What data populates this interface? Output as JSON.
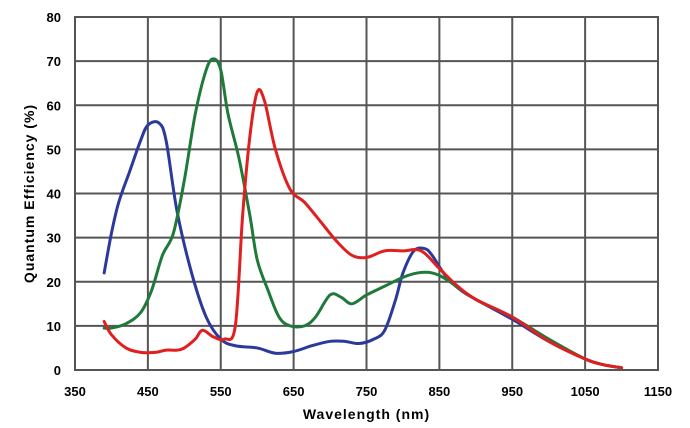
{
  "chart_data": {
    "type": "line",
    "title": "",
    "xlabel": "Wavelength (nm)",
    "ylabel": "Quantum Efficiency (%)",
    "xlim": [
      350,
      1150
    ],
    "ylim": [
      0,
      80
    ],
    "xticks": [
      350,
      450,
      550,
      650,
      750,
      850,
      950,
      1050,
      1150
    ],
    "yticks": [
      0,
      10,
      20,
      30,
      40,
      50,
      60,
      70,
      80
    ],
    "grid": true,
    "legend": "none",
    "series": [
      {
        "color": "#2b3a9a",
        "points": [
          [
            390,
            22
          ],
          [
            400,
            31
          ],
          [
            410,
            38
          ],
          [
            425,
            45
          ],
          [
            440,
            52
          ],
          [
            450,
            55.5
          ],
          [
            465,
            56
          ],
          [
            475,
            52
          ],
          [
            490,
            36
          ],
          [
            510,
            22
          ],
          [
            530,
            12
          ],
          [
            550,
            7
          ],
          [
            570,
            5.5
          ],
          [
            600,
            5
          ],
          [
            625,
            3.8
          ],
          [
            650,
            4.2
          ],
          [
            675,
            5.5
          ],
          [
            700,
            6.5
          ],
          [
            720,
            6.5
          ],
          [
            740,
            6
          ],
          [
            760,
            7
          ],
          [
            775,
            9
          ],
          [
            790,
            16
          ],
          [
            800,
            22
          ],
          [
            815,
            27
          ],
          [
            830,
            27.5
          ],
          [
            840,
            26
          ],
          [
            860,
            21
          ],
          [
            880,
            18
          ],
          [
            900,
            16
          ],
          [
            950,
            11.5
          ],
          [
            1000,
            6.5
          ],
          [
            1050,
            2.5
          ],
          [
            1075,
            1.2
          ],
          [
            1100,
            0.5
          ]
        ]
      },
      {
        "color": "#1f7a3a",
        "points": [
          [
            390,
            9.5
          ],
          [
            400,
            9.5
          ],
          [
            420,
            10.5
          ],
          [
            440,
            13
          ],
          [
            455,
            18
          ],
          [
            470,
            26
          ],
          [
            485,
            31
          ],
          [
            500,
            43
          ],
          [
            515,
            58
          ],
          [
            530,
            68
          ],
          [
            540,
            70.5
          ],
          [
            550,
            68
          ],
          [
            560,
            58
          ],
          [
            575,
            48
          ],
          [
            590,
            35
          ],
          [
            600,
            25
          ],
          [
            615,
            18
          ],
          [
            630,
            12
          ],
          [
            645,
            10
          ],
          [
            665,
            10
          ],
          [
            680,
            12
          ],
          [
            700,
            17
          ],
          [
            715,
            16.5
          ],
          [
            730,
            15
          ],
          [
            750,
            17
          ],
          [
            775,
            19
          ],
          [
            800,
            21
          ],
          [
            820,
            22
          ],
          [
            840,
            22
          ],
          [
            860,
            20.5
          ],
          [
            900,
            16
          ],
          [
            950,
            12
          ],
          [
            1000,
            7
          ],
          [
            1050,
            2.5
          ],
          [
            1075,
            1.2
          ],
          [
            1100,
            0.5
          ]
        ]
      },
      {
        "color": "#e02020",
        "points": [
          [
            390,
            11
          ],
          [
            400,
            8
          ],
          [
            420,
            5
          ],
          [
            440,
            4
          ],
          [
            460,
            4
          ],
          [
            475,
            4.5
          ],
          [
            490,
            4.5
          ],
          [
            500,
            5
          ],
          [
            515,
            7
          ],
          [
            525,
            9
          ],
          [
            540,
            7.5
          ],
          [
            555,
            7
          ],
          [
            570,
            10
          ],
          [
            580,
            35
          ],
          [
            590,
            53
          ],
          [
            600,
            63
          ],
          [
            610,
            61
          ],
          [
            625,
            50
          ],
          [
            645,
            41
          ],
          [
            665,
            38
          ],
          [
            690,
            33
          ],
          [
            710,
            29
          ],
          [
            730,
            26
          ],
          [
            750,
            25.5
          ],
          [
            775,
            27
          ],
          [
            800,
            27
          ],
          [
            825,
            27
          ],
          [
            850,
            23
          ],
          [
            875,
            19
          ],
          [
            900,
            16
          ],
          [
            950,
            12
          ],
          [
            1000,
            6.5
          ],
          [
            1050,
            2.5
          ],
          [
            1075,
            1.2
          ],
          [
            1100,
            0.5
          ]
        ]
      }
    ]
  }
}
